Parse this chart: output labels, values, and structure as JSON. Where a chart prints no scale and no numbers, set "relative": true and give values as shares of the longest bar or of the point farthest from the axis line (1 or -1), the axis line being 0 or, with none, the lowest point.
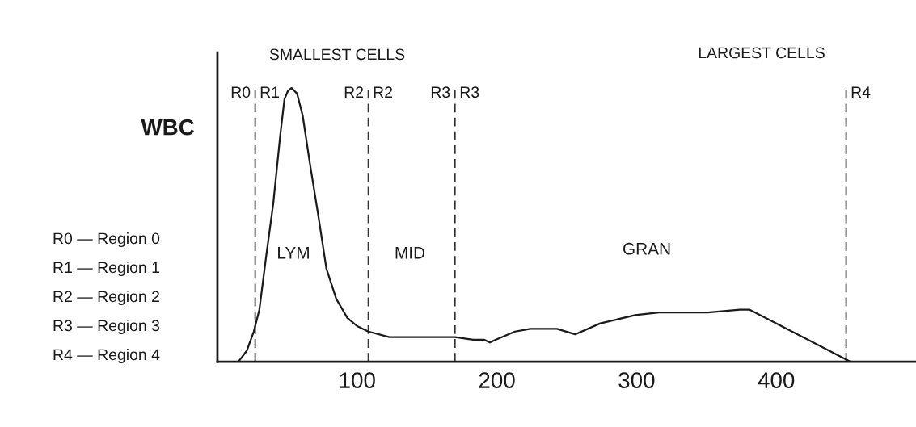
{
  "chart_data": {
    "type": "line",
    "relative": true,
    "ylabel": "WBC",
    "x": [
      15,
      21,
      26,
      30,
      35,
      40,
      45,
      48,
      50.5,
      53,
      55,
      57,
      61,
      66,
      72,
      78,
      85,
      93,
      100,
      108,
      123,
      143,
      170,
      183,
      191,
      195,
      199,
      213,
      224,
      243,
      256,
      274,
      299,
      316,
      338,
      351,
      374,
      381,
      453
    ],
    "series": [
      {
        "color": "#1a1a1a",
        "values": [
          0,
          0.04,
          0.11,
          0.19,
          0.39,
          0.58,
          0.83,
          0.96,
          0.99,
          1,
          0.99,
          0.98,
          0.9,
          0.73,
          0.54,
          0.34,
          0.23,
          0.16,
          0.13,
          0.11,
          0.09,
          0.09,
          0.09,
          0.08,
          0.08,
          0.07,
          0.08,
          0.11,
          0.12,
          0.12,
          0.1,
          0.14,
          0.17,
          0.18,
          0.18,
          0.18,
          0.19,
          0.19,
          0
        ]
      }
    ],
    "xlim": [
      0,
      500
    ],
    "xticks": [
      100,
      200,
      300,
      400
    ],
    "tick_labels": "x",
    "line_style": "solid",
    "ref_lines": [
      {
        "axis": "x",
        "value": 27,
        "label": "R1",
        "color": "#333333",
        "line_style": "dashed"
      },
      {
        "axis": "x",
        "value": 108,
        "label": "R2",
        "color": "#333333",
        "line_style": "dashed"
      },
      {
        "axis": "x",
        "value": 170,
        "label": "R3",
        "color": "#333333",
        "line_style": "dashed"
      },
      {
        "axis": "x",
        "value": 450,
        "label": "R4",
        "color": "#333333",
        "line_style": "dashed"
      }
    ],
    "annotations": [
      {
        "text": "R0",
        "x": 27,
        "y": 0.98
      },
      {
        "text": "R2",
        "x": 108,
        "y": 0.98
      },
      {
        "text": "R3",
        "x": 170,
        "y": 0.98
      },
      "SMALLEST CELLS",
      "LARGEST CELLS",
      "LYM",
      "MID",
      "GRAN",
      "R0 — Region 0",
      "R1 — Region 1",
      "R2 — Region 2",
      "R3 — Region 3",
      "R4 — Region 4"
    ]
  }
}
